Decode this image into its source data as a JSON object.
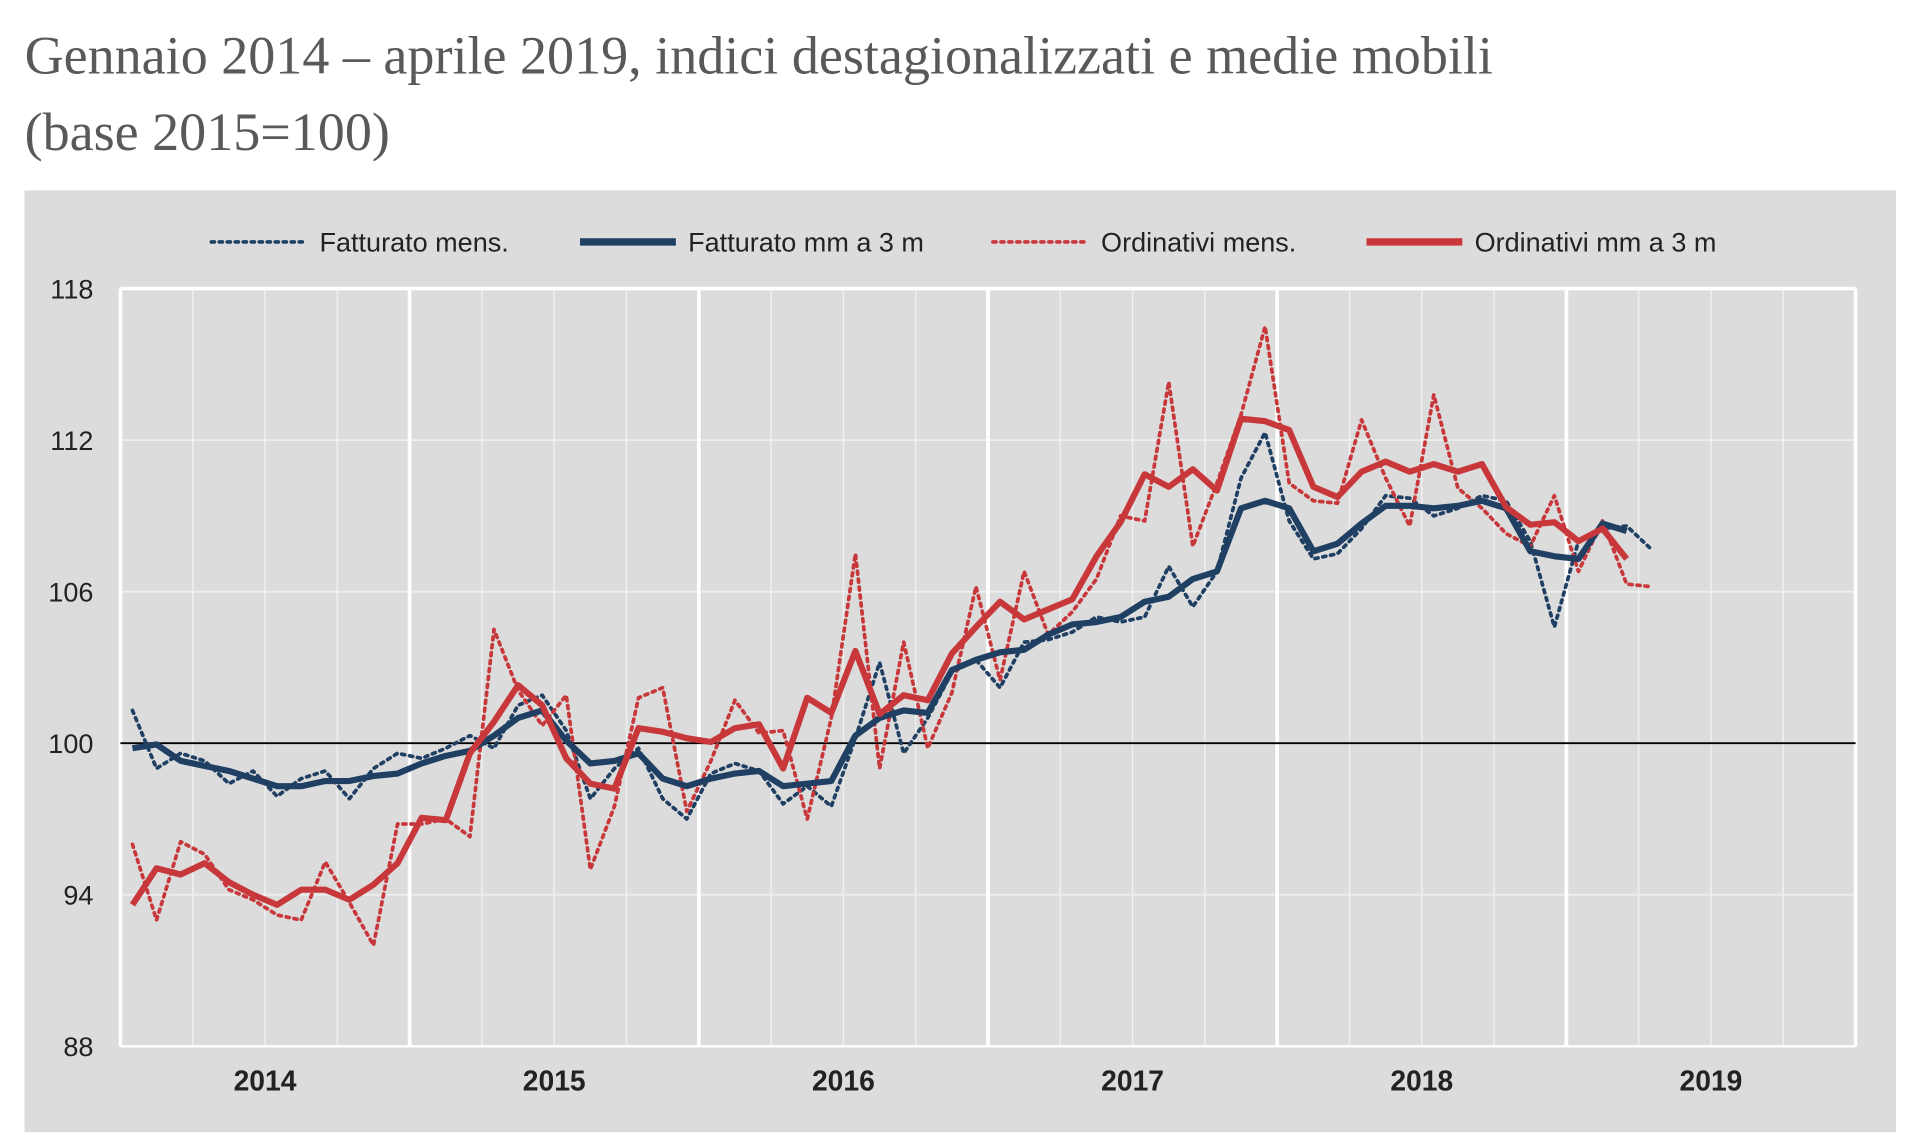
{
  "chart_data": {
    "type": "line",
    "title": "Gennaio 2014 – aprile 2019, indici destagionalizzati e medie mobili",
    "subtitle": "(base 2015=100)",
    "xlabel": "",
    "ylabel": "",
    "ylim": [
      88,
      118
    ],
    "yticks": [
      "88",
      "94",
      "100",
      "106",
      "112",
      "118"
    ],
    "xticks": [
      "2014",
      "2015",
      "2016",
      "2017",
      "2018",
      "2019"
    ],
    "x_start": "2014-01",
    "x_end": "2019-04",
    "reference_line": 100,
    "grid": true,
    "legend_position": "top",
    "colors": {
      "fatturato": "#1f3f63",
      "ordinativi": "#c8383b",
      "background": "#dcdcdc"
    },
    "series": [
      {
        "name": "Fatturato mens.",
        "style": "dotted",
        "color": "#1f3f63",
        "values": [
          101.3,
          99.0,
          99.6,
          99.3,
          98.4,
          98.9,
          97.9,
          98.6,
          98.9,
          97.8,
          99.0,
          99.6,
          99.4,
          99.8,
          100.3,
          99.8,
          101.5,
          101.9,
          100.5,
          97.8,
          99.0,
          99.8,
          97.8,
          97.0,
          98.8,
          99.2,
          98.9,
          97.6,
          98.3,
          97.5,
          100.2,
          103.2,
          99.6,
          101.0,
          102.8,
          103.3,
          102.2,
          104.0,
          104.1,
          104.4,
          105.0,
          104.8,
          105.0,
          107.0,
          105.4,
          106.8,
          110.5,
          112.3,
          108.8,
          107.3,
          107.5,
          108.5,
          109.8,
          109.7,
          109.0,
          109.3,
          109.8,
          109.6,
          108.0,
          104.6,
          108.0,
          108.5,
          108.6,
          107.7
        ]
      },
      {
        "name": "Fatturato mm a 3 m",
        "style": "solid",
        "color": "#1f3f63",
        "values": [
          99.8,
          99.95,
          99.3,
          99.1,
          98.9,
          98.6,
          98.3,
          98.3,
          98.5,
          98.5,
          98.7,
          98.8,
          99.2,
          99.5,
          99.7,
          100.3,
          101.0,
          101.3,
          100.1,
          99.2,
          99.3,
          99.6,
          98.6,
          98.3,
          98.6,
          98.8,
          98.9,
          98.3,
          98.4,
          98.5,
          100.3,
          101.0,
          101.3,
          101.2,
          102.9,
          103.3,
          103.6,
          103.7,
          104.3,
          104.7,
          104.8,
          105.0,
          105.6,
          105.8,
          106.5,
          106.8,
          109.3,
          109.6,
          109.3,
          107.6,
          107.9,
          108.7,
          109.4,
          109.4,
          109.3,
          109.4,
          109.6,
          109.3,
          107.6,
          107.4,
          107.3,
          108.7,
          108.4
        ]
      },
      {
        "name": "Ordinativi mens.",
        "style": "dotted",
        "color": "#c8383b",
        "values": [
          96.0,
          93.0,
          96.1,
          95.6,
          94.2,
          93.8,
          93.2,
          93.0,
          95.3,
          93.7,
          92.0,
          96.8,
          96.8,
          97.0,
          96.3,
          104.5,
          102.1,
          100.7,
          101.9,
          95.0,
          97.5,
          101.8,
          102.2,
          97.3,
          99.3,
          101.7,
          100.4,
          100.5,
          97.0,
          101.0,
          107.5,
          99.0,
          104.0,
          99.8,
          102.0,
          106.2,
          102.5,
          106.8,
          104.3,
          105.2,
          106.5,
          109.0,
          108.8,
          114.3,
          107.8,
          110.3,
          113.0,
          116.5,
          110.3,
          109.6,
          109.5,
          112.8,
          110.5,
          108.6,
          113.8,
          110.1,
          109.3,
          108.3,
          107.8,
          109.8,
          106.8,
          108.8,
          106.3,
          106.2
        ]
      },
      {
        "name": "Ordinativi mm a 3 m",
        "style": "solid",
        "color": "#c8383b",
        "values": [
          93.6,
          95.05,
          94.8,
          95.25,
          94.5,
          94.0,
          93.6,
          94.2,
          94.2,
          93.8,
          94.4,
          95.25,
          97.05,
          96.95,
          99.6,
          100.85,
          102.3,
          101.5,
          99.4,
          98.4,
          98.2,
          100.6,
          100.45,
          100.2,
          100.05,
          100.6,
          100.75,
          99.0,
          101.8,
          101.2,
          103.65,
          101.15,
          101.9,
          101.7,
          103.55,
          104.6,
          105.6,
          104.9,
          105.3,
          105.7,
          107.4,
          108.75,
          110.65,
          110.15,
          110.85,
          110.0,
          112.85,
          112.75,
          112.4,
          110.15,
          109.75,
          110.75,
          111.15,
          110.75,
          111.05,
          110.75,
          111.05,
          109.35,
          108.65,
          108.75,
          108.0,
          108.5,
          107.3
        ]
      }
    ]
  }
}
